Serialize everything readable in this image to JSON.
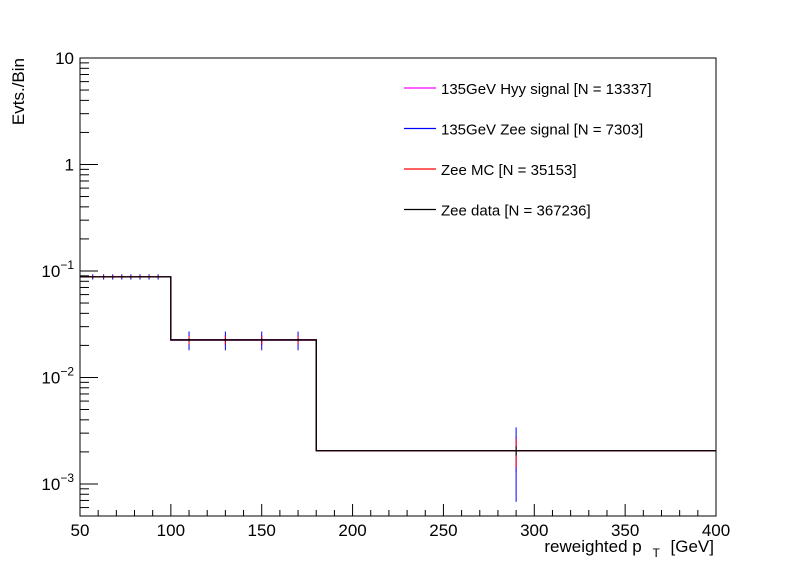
{
  "chart_data": {
    "type": "line",
    "xlabel": "reweighted p",
    "xlabel_sub": "T",
    "xlabel_unit": "[GeV]",
    "ylabel": "Evts./Bin",
    "xlim": [
      50,
      400
    ],
    "ylim": [
      0.0005,
      10
    ],
    "yscale": "log",
    "x_ticks": [
      "50",
      "100",
      "150",
      "200",
      "250",
      "300",
      "350",
      "400"
    ],
    "x_tick_values": [
      50,
      100,
      150,
      200,
      250,
      300,
      350,
      400
    ],
    "y_ticks": [
      {
        "value": 10,
        "base": "10",
        "exp": ""
      },
      {
        "value": 1,
        "base": "1",
        "exp": ""
      },
      {
        "value": 0.1,
        "base": "10",
        "exp": "−1"
      },
      {
        "value": 0.01,
        "base": "10",
        "exp": "−2"
      },
      {
        "value": 0.001,
        "base": "10",
        "exp": "−3"
      }
    ],
    "bins": [
      {
        "lo": 50,
        "hi": 100,
        "value": 0.088
      },
      {
        "lo": 100,
        "hi": 180,
        "value": 0.0225
      },
      {
        "lo": 180,
        "hi": 400,
        "value": 0.00205
      }
    ],
    "points": [
      {
        "x": 57,
        "y": 0.088,
        "lo": 0.083,
        "hi": 0.093
      },
      {
        "x": 63,
        "y": 0.088,
        "lo": 0.083,
        "hi": 0.093
      },
      {
        "x": 68,
        "y": 0.088,
        "lo": 0.083,
        "hi": 0.093
      },
      {
        "x": 73,
        "y": 0.088,
        "lo": 0.083,
        "hi": 0.093
      },
      {
        "x": 78,
        "y": 0.088,
        "lo": 0.083,
        "hi": 0.093
      },
      {
        "x": 83,
        "y": 0.088,
        "lo": 0.083,
        "hi": 0.093
      },
      {
        "x": 88,
        "y": 0.088,
        "lo": 0.083,
        "hi": 0.093
      },
      {
        "x": 93,
        "y": 0.088,
        "lo": 0.083,
        "hi": 0.093
      },
      {
        "x": 110,
        "y": 0.0225,
        "lo": 0.018,
        "hi": 0.027
      },
      {
        "x": 130,
        "y": 0.0225,
        "lo": 0.018,
        "hi": 0.027
      },
      {
        "x": 150,
        "y": 0.0225,
        "lo": 0.018,
        "hi": 0.027
      },
      {
        "x": 170,
        "y": 0.0225,
        "lo": 0.018,
        "hi": 0.027
      },
      {
        "x": 290,
        "y": 0.00205,
        "lo": 0.00068,
        "hi": 0.0034
      }
    ],
    "series": [
      {
        "name": "135GeV Hyy signal [N = 13337]",
        "color": "#ff00ff",
        "err_scale": 0.55
      },
      {
        "name": "135GeV Zee signal [N = 7303]",
        "color": "#0000ff",
        "err_scale": 1.0
      },
      {
        "name": "Zee MC [N = 35153]",
        "color": "#ff0000",
        "err_scale": 0.45
      },
      {
        "name": "Zee data [N = 367236]",
        "color": "#000000",
        "err_scale": 0.15
      }
    ],
    "legend_position": "top-right",
    "grid": false
  }
}
